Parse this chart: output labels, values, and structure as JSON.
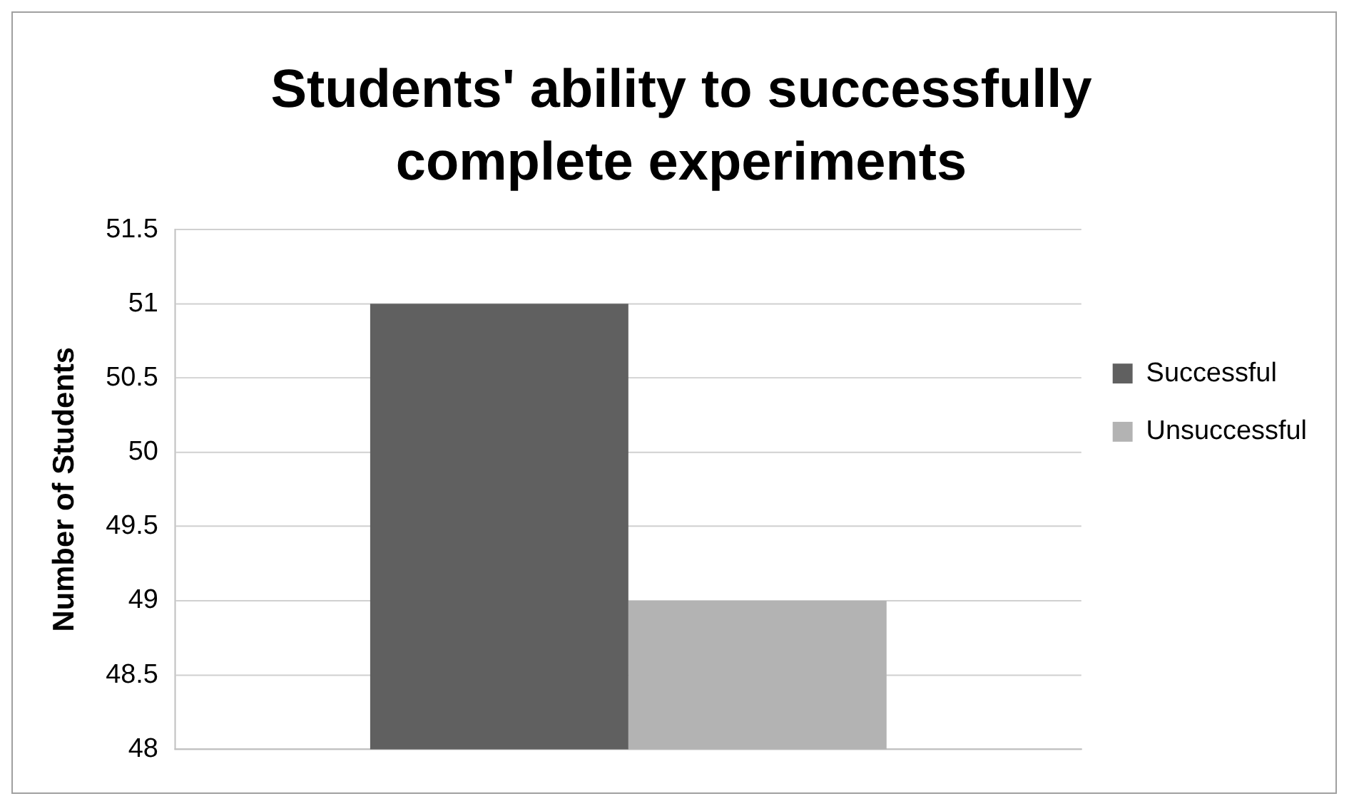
{
  "chart_data": {
    "type": "bar",
    "title": "Students' ability to successfully complete experiments",
    "ylabel": "Number of Students",
    "categories": [
      null
    ],
    "series": [
      {
        "name": "Successful",
        "color": "#606060",
        "values": [
          51
        ]
      },
      {
        "name": "Unsuccessful",
        "color": "#b3b3b3",
        "values": [
          49
        ]
      }
    ],
    "ylim": [
      48,
      51.5
    ],
    "yticks": [
      48,
      48.5,
      49,
      49.5,
      50,
      50.5,
      51,
      51.5
    ],
    "grid": "y",
    "legend": "right"
  }
}
